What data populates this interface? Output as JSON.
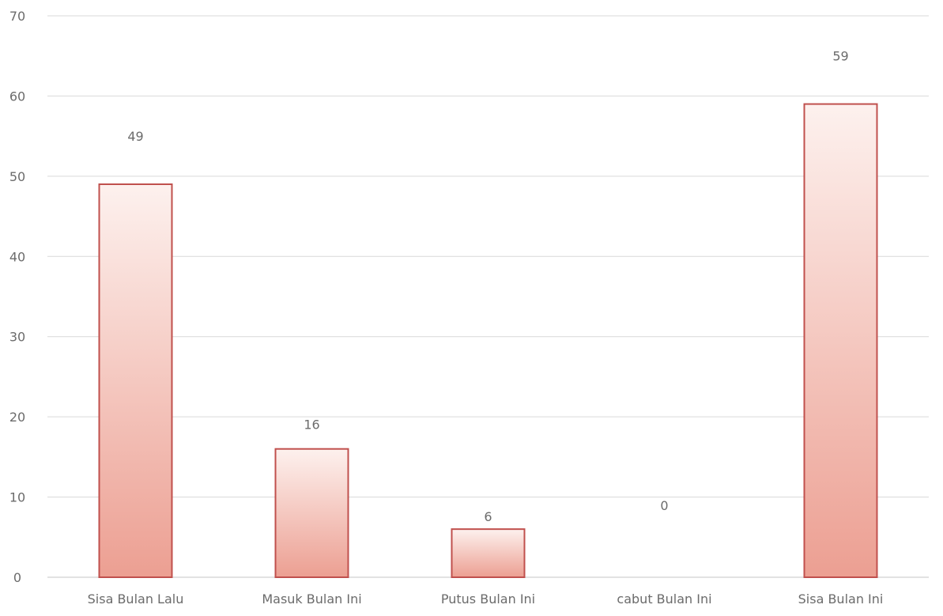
{
  "chart_data": {
    "type": "bar",
    "categories": [
      "Sisa Bulan Lalu",
      "Masuk Bulan Ini",
      "Putus Bulan Ini",
      "cabut Bulan Ini",
      "Sisa Bulan Ini"
    ],
    "values": [
      49,
      16,
      6,
      0,
      59
    ],
    "data_labels": [
      "49",
      "16",
      "6",
      "0",
      "59"
    ],
    "title": "",
    "xlabel": "",
    "ylabel": "",
    "ylim": [
      0,
      70
    ],
    "yticks": [
      0,
      10,
      20,
      30,
      40,
      50,
      60,
      70
    ],
    "grid": true,
    "legend": "none",
    "colors": {
      "bar_fill_top": "#fdf1ee",
      "bar_fill_bottom": "#ec9f92",
      "bar_stroke": "#c0504d",
      "grid": "#d9d9d9",
      "text": "#6b6b6b"
    }
  }
}
